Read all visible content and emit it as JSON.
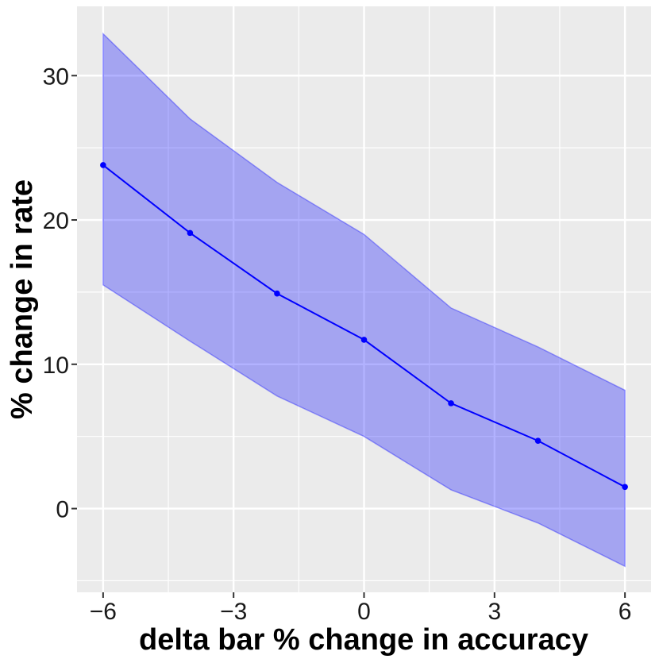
{
  "chart_data": {
    "type": "line",
    "title": "",
    "xlabel": "delta bar % change in accuracy",
    "ylabel": "% change in rate",
    "xlim": [
      -6.6,
      6.6
    ],
    "ylim": [
      -5.8,
      34.8
    ],
    "x_ticks": [
      -6,
      -3,
      0,
      3,
      6
    ],
    "x_tick_labels": [
      "−6",
      "−3",
      "0",
      "3",
      "6"
    ],
    "y_ticks": [
      0,
      10,
      20,
      30
    ],
    "y_tick_labels": [
      "0",
      "10",
      "20",
      "30"
    ],
    "grid": true,
    "legend": "none",
    "series": [
      {
        "x": [
          -6,
          -4,
          -2,
          0,
          2,
          4,
          6
        ],
        "y": [
          23.8,
          19.1,
          14.9,
          11.7,
          7.3,
          4.7,
          1.5
        ],
        "lower": [
          15.5,
          11.6,
          7.8,
          5.0,
          1.3,
          -1.0,
          -4.0
        ],
        "upper": [
          32.9,
          27.0,
          22.6,
          19.0,
          13.9,
          11.2,
          8.2
        ],
        "line_color": "#0000ff",
        "band_color": "#0000ff"
      }
    ],
    "panel_color": "#ebebeb",
    "grid_color": "#ffffff"
  }
}
